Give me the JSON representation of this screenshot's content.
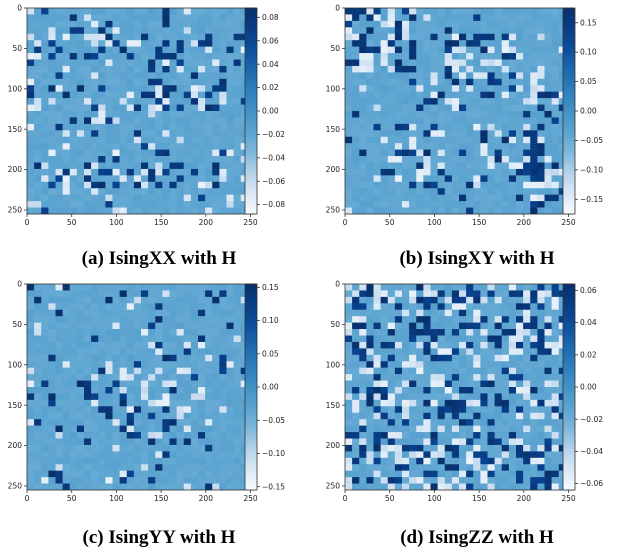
{
  "chart_data": [
    {
      "type": "heatmap",
      "caption": "(a) IsingXX with H",
      "xticks": [
        "0",
        "50",
        "100",
        "150",
        "200",
        "250"
      ],
      "yticks": [
        "0",
        "50",
        "100",
        "150",
        "200",
        "250"
      ],
      "xlim": [
        0,
        255
      ],
      "ylim": [
        0,
        255
      ],
      "colorbar": {
        "ticks": [
          "0.08",
          "0.06",
          "0.04",
          "0.02",
          "0.00",
          "−0.02",
          "−0.04",
          "−0.06",
          "−0.08"
        ],
        "range": [
          -0.088,
          0.088
        ]
      },
      "colormap": "Blues",
      "pattern": "horizontal-bands"
    },
    {
      "type": "heatmap",
      "caption": "(b) IsingXY with H",
      "xticks": [
        "0",
        "50",
        "100",
        "150",
        "200",
        "250"
      ],
      "yticks": [
        "0",
        "50",
        "100",
        "150",
        "200",
        "250"
      ],
      "xlim": [
        0,
        255
      ],
      "ylim": [
        0,
        255
      ],
      "colorbar": {
        "ticks": [
          "0.15",
          "0.10",
          "0.05",
          "0.00",
          "−0.05",
          "−0.10",
          "−0.15"
        ],
        "range": [
          -0.175,
          0.175
        ]
      },
      "colormap": "Blues",
      "pattern": "sparse-blocks"
    },
    {
      "type": "heatmap",
      "caption": "(c) IsingYY with H",
      "xticks": [
        "0",
        "50",
        "100",
        "150",
        "200",
        "250"
      ],
      "yticks": [
        "0",
        "50",
        "100",
        "150",
        "200",
        "250"
      ],
      "xlim": [
        0,
        255
      ],
      "ylim": [
        0,
        255
      ],
      "colorbar": {
        "ticks": [
          "0.15",
          "0.10",
          "0.05",
          "0.00",
          "−0.05",
          "−0.10",
          "−0.15"
        ],
        "range": [
          -0.155,
          0.155
        ]
      },
      "colormap": "Blues",
      "pattern": "diamond"
    },
    {
      "type": "heatmap",
      "caption": "(d) IsingZZ with H",
      "xticks": [
        "0",
        "50",
        "100",
        "150",
        "200",
        "250"
      ],
      "yticks": [
        "0",
        "50",
        "100",
        "150",
        "200",
        "250"
      ],
      "xlim": [
        0,
        255
      ],
      "ylim": [
        0,
        255
      ],
      "colorbar": {
        "ticks": [
          "0.06",
          "0.04",
          "0.02",
          "0.00",
          "−0.02",
          "−0.04",
          "−0.06"
        ],
        "range": [
          -0.064,
          0.064
        ]
      },
      "colormap": "Blues",
      "pattern": "dense-bands"
    }
  ]
}
